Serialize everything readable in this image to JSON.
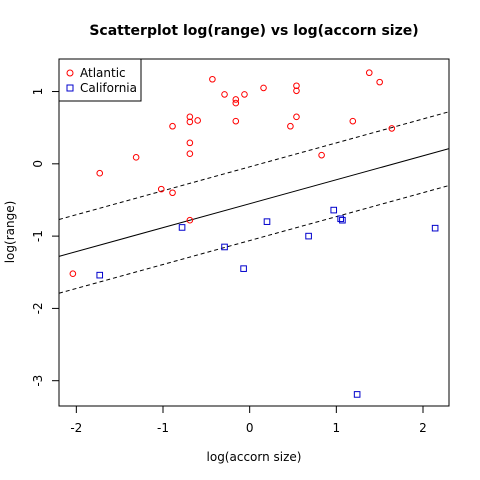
{
  "chart_data": {
    "type": "scatter",
    "title": "Scatterplot log(range) vs log(accorn size)",
    "xlabel": "log(accorn size)",
    "ylabel": "log(range)",
    "xlim": [
      -2.2,
      2.3
    ],
    "ylim": [
      -3.35,
      1.45
    ],
    "xticks": [
      -2,
      -1,
      0,
      1,
      2
    ],
    "yticks": [
      -3,
      -2,
      -1,
      0,
      1
    ],
    "legend_position": "top-left",
    "series": [
      {
        "name": "Atlantic",
        "marker": "circle",
        "color": "#ff0000",
        "points": [
          [
            -2.04,
            -1.52
          ],
          [
            -1.73,
            -0.13
          ],
          [
            -1.31,
            0.09
          ],
          [
            -1.02,
            -0.35
          ],
          [
            -0.89,
            -0.4
          ],
          [
            -0.89,
            0.52
          ],
          [
            -0.69,
            -0.78
          ],
          [
            -0.69,
            0.14
          ],
          [
            -0.69,
            0.29
          ],
          [
            -0.69,
            0.58
          ],
          [
            -0.69,
            0.65
          ],
          [
            -0.6,
            0.6
          ],
          [
            -0.43,
            1.17
          ],
          [
            -0.29,
            0.96
          ],
          [
            -0.16,
            0.84
          ],
          [
            -0.16,
            0.89
          ],
          [
            -0.16,
            0.59
          ],
          [
            -0.06,
            0.96
          ],
          [
            0.16,
            1.05
          ],
          [
            0.47,
            0.52
          ],
          [
            0.54,
            1.01
          ],
          [
            0.54,
            1.08
          ],
          [
            0.54,
            0.65
          ],
          [
            0.83,
            0.12
          ],
          [
            1.19,
            0.59
          ],
          [
            1.38,
            1.26
          ],
          [
            1.5,
            1.13
          ],
          [
            1.64,
            0.49
          ]
        ]
      },
      {
        "name": "California",
        "marker": "square",
        "color": "#0000cc",
        "points": [
          [
            -1.73,
            -1.54
          ],
          [
            -0.78,
            -0.88
          ],
          [
            -0.29,
            -1.15
          ],
          [
            -0.07,
            -1.45
          ],
          [
            0.2,
            -0.8
          ],
          [
            0.68,
            -1.0
          ],
          [
            0.97,
            -0.64
          ],
          [
            1.05,
            -0.76
          ],
          [
            1.07,
            -0.78
          ],
          [
            1.24,
            -3.19
          ],
          [
            2.14,
            -0.89
          ]
        ]
      }
    ],
    "lines": [
      {
        "style": "solid",
        "x": [
          -2.2,
          2.3
        ],
        "y": [
          -1.28,
          0.21
        ]
      },
      {
        "style": "dashed",
        "x": [
          -2.2,
          2.3
        ],
        "y": [
          -0.77,
          0.72
        ]
      },
      {
        "style": "dashed",
        "x": [
          -2.2,
          2.3
        ],
        "y": [
          -1.79,
          -0.3
        ]
      }
    ]
  }
}
